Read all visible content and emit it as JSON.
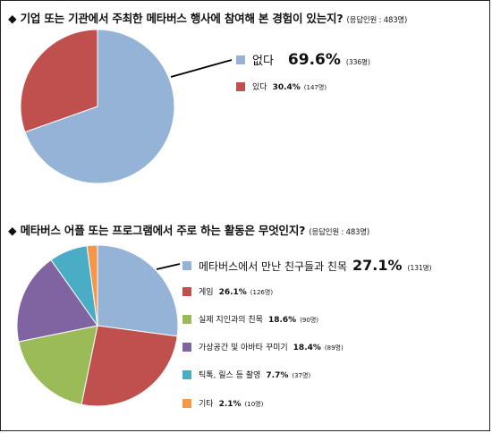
{
  "chart_data": [
    {
      "type": "pie",
      "title": "◆ 기업 또는 기관에서 주최한 메타버스 행사에 참여해 본 경험이 있는지?",
      "note": "(응답인원 : 483명)",
      "slices": [
        {
          "label": "없다",
          "value": 69.6,
          "value_label": "69.6%",
          "count": "(336명)",
          "color": "#95b3d7"
        },
        {
          "label": "있다",
          "value": 30.4,
          "value_label": "30.4%",
          "count": "(147명)",
          "color": "#c0504d"
        }
      ]
    },
    {
      "type": "pie",
      "title": "◆ 메타버스 어플 또는 프로그램에서 주로 하는 활동은 무엇인지?",
      "note": "(응답인원 : 483명)",
      "slices": [
        {
          "label": "메타버스에서 만난 친구들과 친목",
          "value": 27.1,
          "value_label": "27.1%",
          "count": "(131명)",
          "color": "#95b3d7"
        },
        {
          "label": "게임",
          "value": 26.1,
          "value_label": "26.1%",
          "count": "(126명)",
          "color": "#c0504d"
        },
        {
          "label": "실제 지인과의 친목",
          "value": 18.6,
          "value_label": "18.6%",
          "count": "(90명)",
          "color": "#9bbb59"
        },
        {
          "label": "가상공간 및 아바타 꾸미기",
          "value": 18.4,
          "value_label": "18.4%",
          "count": "(89명)",
          "color": "#8064a2"
        },
        {
          "label": "틱톡, 릴스 등 촬영",
          "value": 7.7,
          "value_label": "7.7%",
          "count": "(37명)",
          "color": "#4bacc6"
        },
        {
          "label": "기타",
          "value": 2.1,
          "value_label": "2.1%",
          "count": "(10명)",
          "color": "#f79646"
        }
      ]
    }
  ]
}
